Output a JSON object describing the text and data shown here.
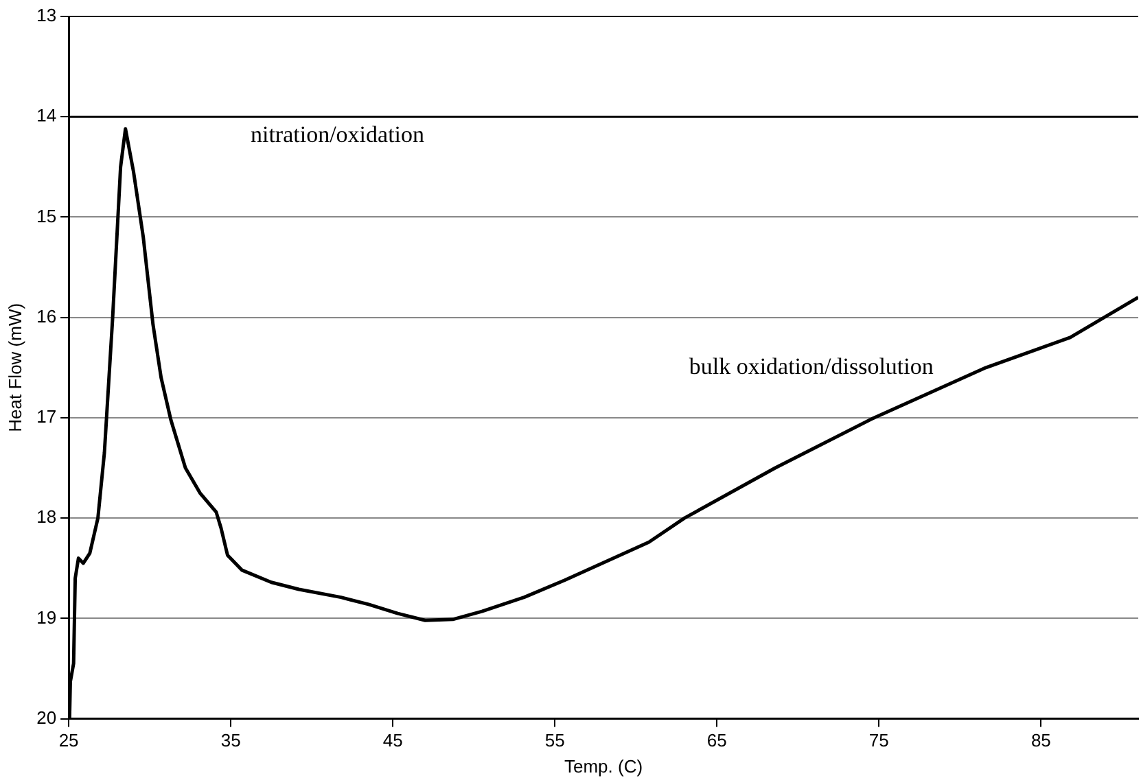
{
  "chart_data": {
    "type": "line",
    "xlabel": "Temp. (C)",
    "ylabel": "Heat Flow (mW)",
    "xlim": [
      25,
      91
    ],
    "xticks": [
      25,
      35,
      45,
      55,
      65,
      75,
      85
    ],
    "ylim": [
      20,
      13
    ],
    "yticks": [
      13,
      14,
      15,
      16,
      17,
      18,
      19,
      20
    ],
    "grid": "y",
    "legend": false,
    "marker": "none",
    "line_style": "solid",
    "annotations": [
      "nitration/oxidation",
      "bulk oxidation/dissolution"
    ],
    "ref_lines": [
      {
        "axis": "y",
        "value": 14,
        "color": "#000000",
        "line_style": "solid"
      }
    ],
    "series": [
      {
        "color": "#000000",
        "x": [
          25.05,
          25.1,
          25.3,
          25.4,
          25.6,
          25.9,
          26.3,
          26.8,
          27.2,
          27.7,
          28.2,
          28.5,
          29.0,
          29.6,
          30.2,
          30.7,
          31.3,
          32.2,
          33.1,
          34.1,
          34.4,
          34.8,
          35.7,
          37.5,
          39.2,
          41.8,
          43.5,
          45.3,
          47.0,
          48.7,
          50.5,
          53.1,
          55.6,
          58.2,
          60.8,
          63.0,
          68.6,
          74.7,
          81.6,
          86.8,
          91.0
        ],
        "values": [
          20.0,
          19.63,
          19.45,
          18.6,
          18.4,
          18.45,
          18.35,
          18.0,
          17.35,
          16.03,
          14.5,
          14.12,
          14.55,
          15.2,
          16.07,
          16.6,
          17.02,
          17.5,
          17.75,
          17.94,
          18.1,
          18.37,
          18.52,
          18.64,
          18.71,
          18.79,
          18.86,
          18.95,
          19.02,
          19.01,
          18.93,
          18.79,
          18.62,
          18.43,
          18.24,
          18.0,
          17.5,
          17.0,
          16.5,
          16.2,
          15.8
        ]
      }
    ]
  }
}
